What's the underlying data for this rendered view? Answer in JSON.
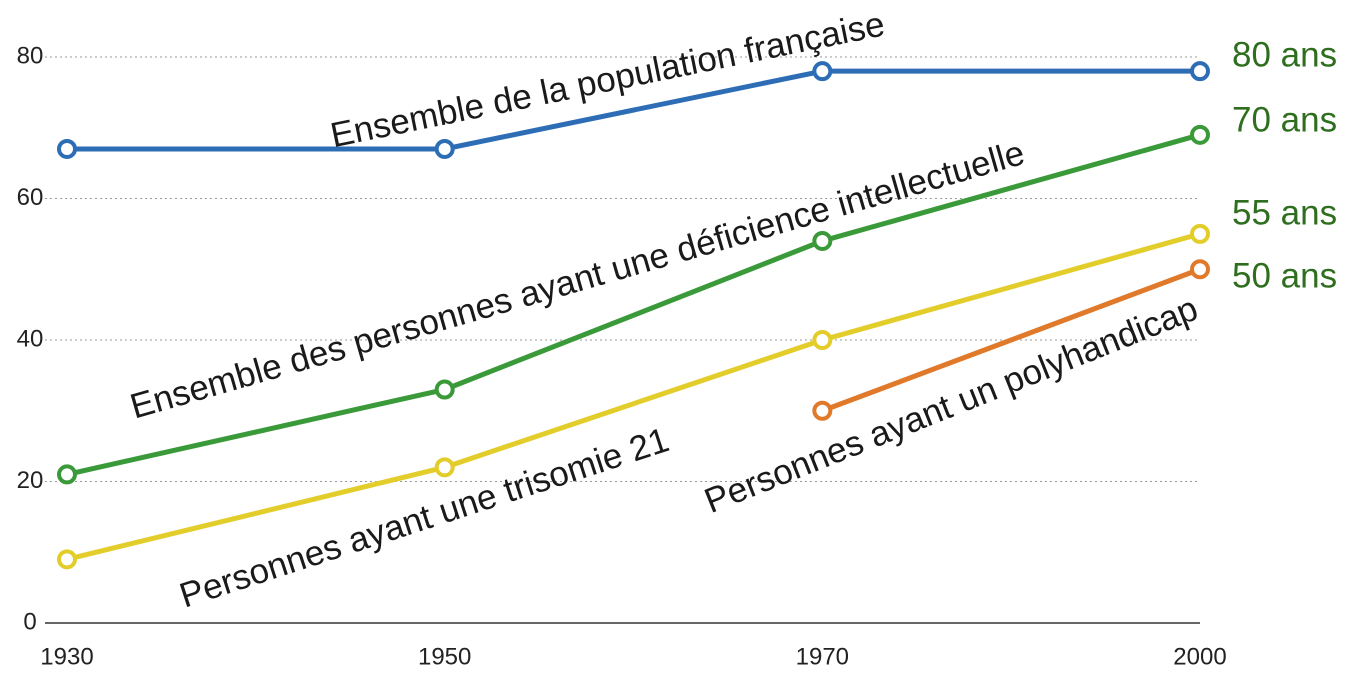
{
  "chart_data": {
    "type": "line",
    "categories": [
      "1930",
      "1950",
      "1970",
      "2000"
    ],
    "series": [
      {
        "name": "Ensemble de la population française",
        "color": "#2d6db5",
        "values": [
          67,
          67,
          78,
          78
        ]
      },
      {
        "name": "Ensemble des personnes ayant une déficience intellectuelle",
        "color": "#3a9a3a",
        "values": [
          21,
          33,
          54,
          69
        ]
      },
      {
        "name": "Personnes ayant une trisomie 21",
        "color": "#e3cd2b",
        "values": [
          9,
          22,
          40,
          55
        ]
      },
      {
        "name": "Personnes ayant un polyhandicap",
        "color": "#e07a2a",
        "values": [
          null,
          null,
          30,
          50
        ]
      }
    ],
    "annotations": [
      "80 ans",
      "70 ans",
      "55 ans",
      "50 ans"
    ],
    "ylim": [
      0,
      80
    ],
    "yticks": [
      0,
      20,
      40,
      60,
      80
    ],
    "grid": true
  }
}
